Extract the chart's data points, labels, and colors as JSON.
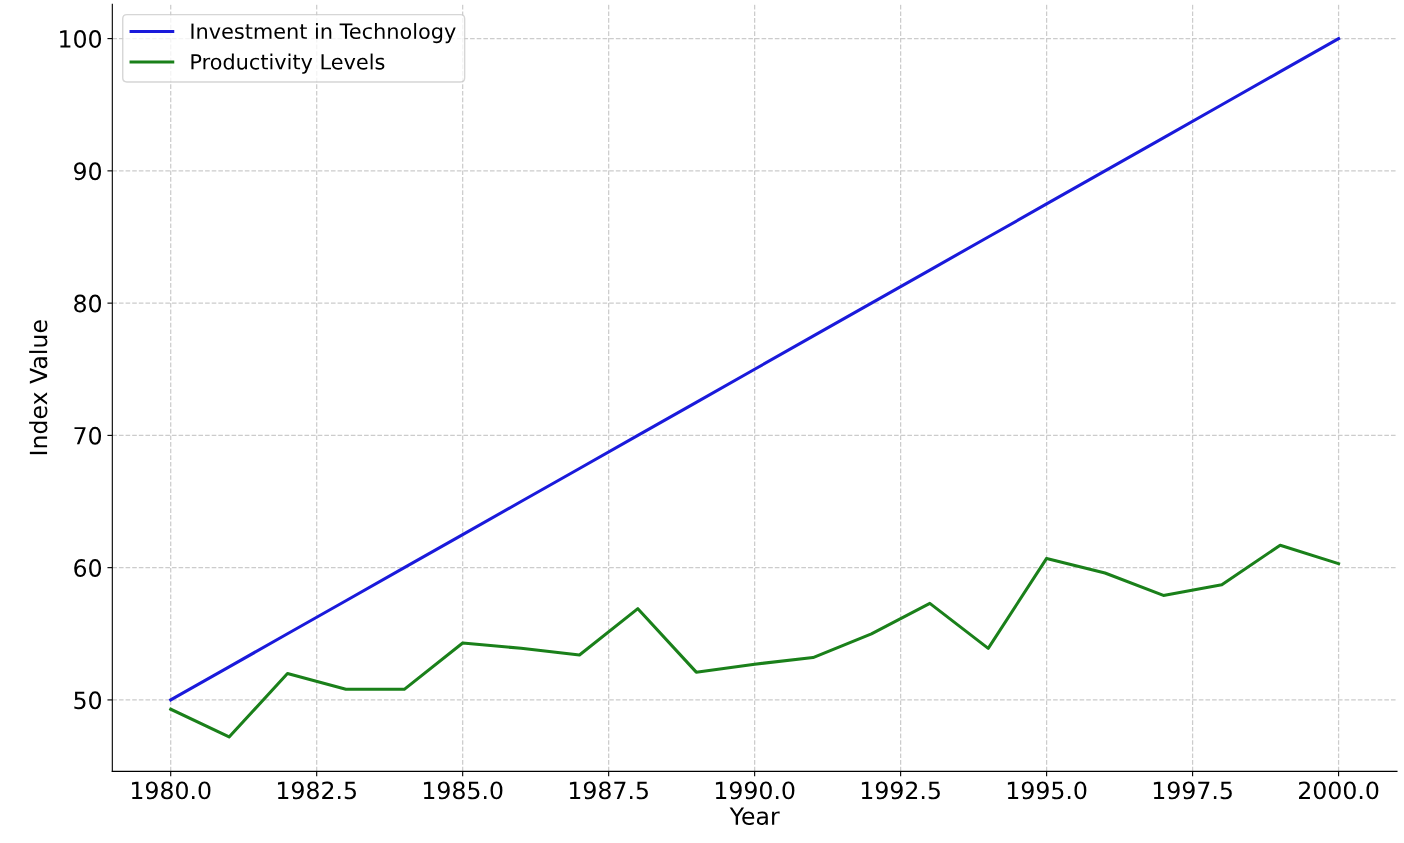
{
  "chart_data": {
    "type": "line",
    "xlabel": "Year",
    "ylabel": "Index Value",
    "x": [
      1980,
      1981,
      1982,
      1983,
      1984,
      1985,
      1986,
      1987,
      1988,
      1989,
      1990,
      1991,
      1992,
      1993,
      1994,
      1995,
      1996,
      1997,
      1998,
      1999,
      2000
    ],
    "series": [
      {
        "name": "Investment in Technology",
        "color": "#1a1adb",
        "values": [
          50,
          52.5,
          55,
          57.5,
          60,
          62.5,
          65,
          67.5,
          70,
          72.5,
          75,
          77.5,
          80,
          82.5,
          85,
          87.5,
          90,
          92.5,
          95,
          97.5,
          100
        ]
      },
      {
        "name": "Productivity Levels",
        "color": "#1a801a",
        "values": [
          49.3,
          47.2,
          52.0,
          50.8,
          50.8,
          54.3,
          53.9,
          53.4,
          56.9,
          52.1,
          52.7,
          53.2,
          55.0,
          57.3,
          53.9,
          60.7,
          59.6,
          57.9,
          58.7,
          61.7,
          60.3
        ]
      }
    ],
    "xlim": [
      1979,
      2001
    ],
    "ylim": [
      44.6,
      102.6
    ],
    "xticks": [
      {
        "value": 1980,
        "label": "1980.0"
      },
      {
        "value": 1982.5,
        "label": "1982.5"
      },
      {
        "value": 1985,
        "label": "1985.0"
      },
      {
        "value": 1987.5,
        "label": "1987.5"
      },
      {
        "value": 1990,
        "label": "1990.0"
      },
      {
        "value": 1992.5,
        "label": "1992.5"
      },
      {
        "value": 1995,
        "label": "1995.0"
      },
      {
        "value": 1997.5,
        "label": "1997.5"
      },
      {
        "value": 2000,
        "label": "2000.0"
      }
    ],
    "yticks": [
      50,
      60,
      70,
      80,
      90,
      100
    ],
    "grid": true,
    "legend": "top left",
    "line_style": "solid",
    "marker": "none"
  }
}
